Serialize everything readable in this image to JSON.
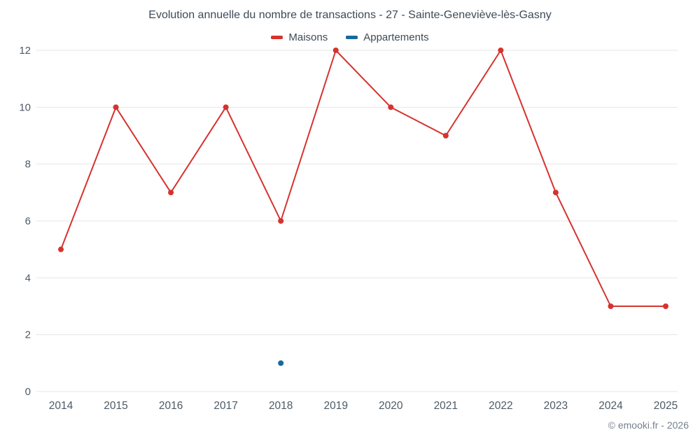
{
  "chart": {
    "title": "Evolution annuelle du nombre de transactions - 27 - Sainte-Geneviève-lès-Gasny",
    "footer": "© emooki.fr - 2026"
  },
  "chart_data": {
    "type": "line",
    "title": "Evolution annuelle du nombre de transactions - 27 - Sainte-Geneviève-lès-Gasny",
    "x": [
      2014,
      2015,
      2016,
      2017,
      2018,
      2019,
      2020,
      2021,
      2022,
      2023,
      2024,
      2025
    ],
    "series": [
      {
        "name": "Maisons",
        "color": "#d5332f",
        "values": [
          5,
          10,
          7,
          10,
          6,
          12,
          10,
          9,
          12,
          7,
          3,
          3
        ]
      },
      {
        "name": "Appartements",
        "color": "#17699e",
        "values": [
          null,
          null,
          null,
          null,
          1,
          null,
          null,
          null,
          null,
          null,
          null,
          null
        ]
      }
    ],
    "xlabel": "",
    "ylabel": "",
    "ylim": [
      0,
      12
    ],
    "yticks": [
      0,
      2,
      4,
      6,
      8,
      10,
      12
    ],
    "grid": true,
    "grid_color": "#e6e6e6",
    "legend_position": "top",
    "tick_label_color": "#4d5a66"
  }
}
